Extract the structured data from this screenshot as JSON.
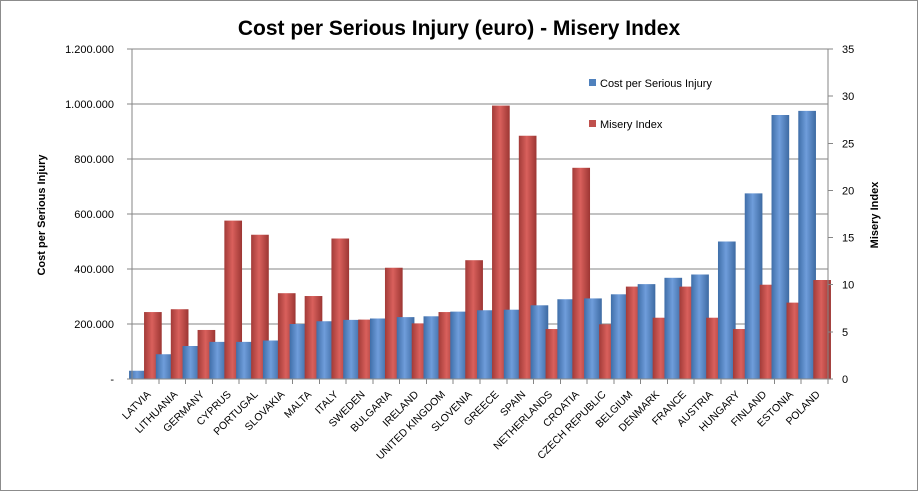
{
  "chart_data": {
    "type": "bar",
    "title": "Cost per Serious Injury (euro) - Misery Index",
    "ylabel": "Cost per Serious Injury",
    "y2label": "Misery Index",
    "xlabel": "",
    "ylim": [
      0,
      1200000
    ],
    "y2lim": [
      0,
      35
    ],
    "yticks": [
      "-",
      "200.000",
      "400.000",
      "600.000",
      "800.000",
      "1.000.000",
      "1.200.000"
    ],
    "y2ticks": [
      "0",
      "5",
      "10",
      "15",
      "20",
      "25",
      "30",
      "35"
    ],
    "grid": true,
    "legend_position": "top-right",
    "categories": [
      "LATVIA",
      "LITHUANIA",
      "GERMANY",
      "CYPRUS",
      "PORTUGAL",
      "SLOVAKIA",
      "MALTA",
      "ITALY",
      "SWEDEN",
      "BULGARIA",
      "IRELAND",
      "UNITED KINGDOM",
      "SLOVENIA",
      "GREECE",
      "SPAIN",
      "NETHERLANDS",
      "CROATIA",
      "CZECH REPUBLIC",
      "BELGIUM",
      "DENMARK",
      "FRANCE",
      "AUSTRIA",
      "HUNGARY",
      "FINLAND",
      "ESTONIA",
      "POLAND"
    ],
    "series": [
      {
        "name": "Cost per Serious Injury",
        "axis": "left",
        "color": "#4f81bd",
        "values": [
          30000,
          90000,
          120000,
          135000,
          135000,
          140000,
          200000,
          210000,
          215000,
          220000,
          225000,
          228000,
          245000,
          250000,
          252000,
          268000,
          290000,
          293000,
          308000,
          345000,
          368000,
          380000,
          500000,
          675000,
          960000,
          975000
        ]
      },
      {
        "name": "Misery Index",
        "axis": "right",
        "color": "#c0504d",
        "values": [
          7.1,
          7.4,
          5.2,
          16.8,
          15.3,
          9.1,
          8.8,
          14.9,
          6.3,
          11.8,
          5.9,
          7.1,
          12.6,
          29.0,
          25.8,
          5.3,
          22.4,
          5.8,
          9.8,
          6.5,
          9.8,
          6.5,
          5.3,
          10.0,
          8.1,
          10.5
        ]
      }
    ]
  }
}
